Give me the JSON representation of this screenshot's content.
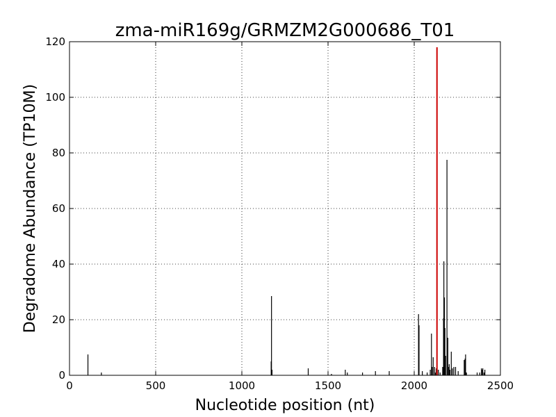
{
  "chart_data": {
    "type": "bar",
    "title": "zma-miR169g/GRMZM2G000686_T01",
    "xlabel": "Nucleotide position (nt)",
    "ylabel": "Degradome Abundance (TP10M)",
    "xlim": [
      0,
      2500
    ],
    "ylim": [
      0,
      120
    ],
    "xticks": [
      "0",
      "500",
      "1000",
      "1500",
      "2000",
      "2500"
    ],
    "yticks": [
      "0",
      "20",
      "40",
      "60",
      "80",
      "100",
      "120"
    ],
    "grid": true,
    "series": [
      {
        "color": "#000000",
        "x": [
          107,
          185,
          1170,
          1172,
          1175,
          1385,
          1520,
          1600,
          1612,
          1700,
          1775,
          1855,
          2025,
          2028,
          2047,
          2075,
          2093,
          2100,
          2104,
          2110,
          2118,
          2122,
          2128,
          2140,
          2150,
          2165,
          2170,
          2172,
          2175,
          2178,
          2182,
          2190,
          2195,
          2198,
          2203,
          2207,
          2215,
          2222,
          2230,
          2240,
          2255,
          2290,
          2295,
          2298,
          2303,
          2365,
          2380,
          2390,
          2395,
          2398,
          2405,
          2410
        ],
        "values": [
          7.5,
          1,
          5,
          28.5,
          2,
          2.5,
          0.5,
          2,
          1,
          1,
          1.5,
          1.5,
          22,
          18,
          1.5,
          1,
          2,
          15,
          3,
          6.5,
          3,
          1,
          2.5,
          2,
          1,
          3,
          20.5,
          41,
          28,
          17,
          7,
          77.5,
          13.5,
          3,
          4,
          2,
          8.5,
          2.5,
          3,
          3,
          1.5,
          5.5,
          6,
          7.5,
          1,
          1,
          1,
          2.5,
          2,
          2.5,
          1,
          2
        ]
      },
      {
        "color": "#cc0000",
        "x": [
          2132
        ],
        "values": [
          118
        ]
      }
    ]
  }
}
